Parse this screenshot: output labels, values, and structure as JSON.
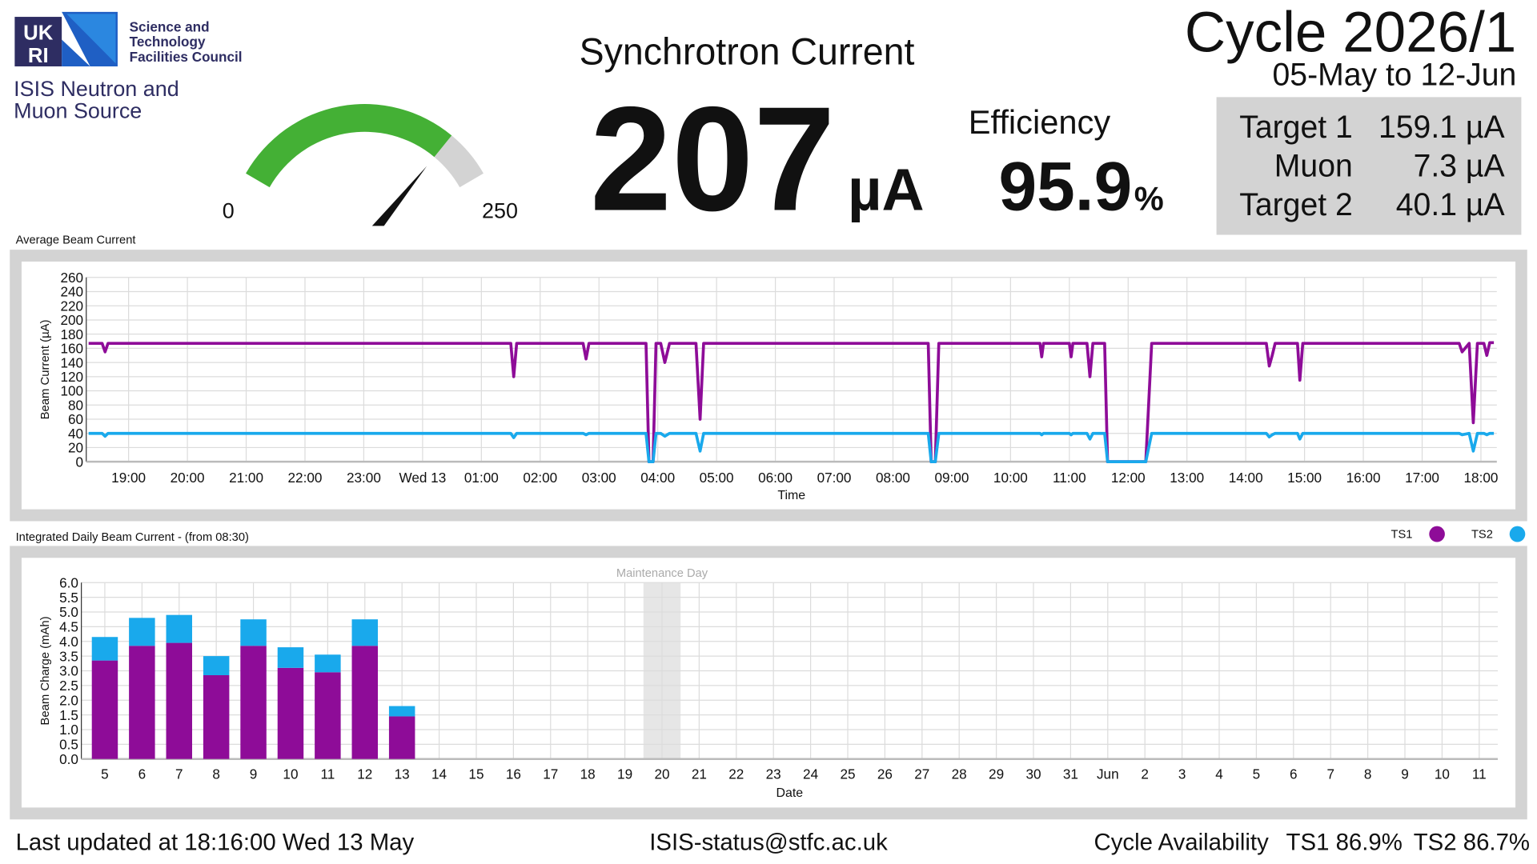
{
  "logo": {
    "letters": [
      "UK",
      "RI"
    ],
    "council": [
      "Science and",
      "Technology",
      "Facilities Council"
    ],
    "facility": [
      "ISIS Neutron and",
      "Muon Source"
    ]
  },
  "current": {
    "title": "Synchrotron Current",
    "value": 207,
    "unit": "µA"
  },
  "gauge": {
    "min": 0,
    "max": 250,
    "color": "#44b035",
    "track_color": "#d3d3d3"
  },
  "efficiency": {
    "label": "Efficiency",
    "value": 95.9,
    "unit": "%"
  },
  "cycle": {
    "title": "Cycle 2026/1",
    "dates": "05-May to 12-Jun"
  },
  "targets": [
    {
      "name": "Target 1",
      "value": "159.1 µA"
    },
    {
      "name": "Muon",
      "value": "7.3 µA"
    },
    {
      "name": "Target 2",
      "value": "40.1 µA"
    }
  ],
  "footer": {
    "updated": "Last updated at 18:16:00 Wed 13 May",
    "email": "ISIS-status@stfc.ac.uk",
    "availability": "Cycle Availability",
    "ts1": "TS1 86.9%",
    "ts2": "TS2 86.7%"
  },
  "chart_data": [
    {
      "type": "line",
      "title": "Average Beam Current",
      "x_label": "Time",
      "y_label": "Beam Current (µA)",
      "xlim": [
        18.28,
        42.27
      ],
      "xticks": [
        {
          "value": 19,
          "label": "19:00"
        },
        {
          "value": 20,
          "label": "20:00"
        },
        {
          "value": 21,
          "label": "21:00"
        },
        {
          "value": 22,
          "label": "22:00"
        },
        {
          "value": 23,
          "label": "23:00"
        },
        {
          "value": 24,
          "label": "Wed 13"
        },
        {
          "value": 25,
          "label": "01:00"
        },
        {
          "value": 26,
          "label": "02:00"
        },
        {
          "value": 27,
          "label": "03:00"
        },
        {
          "value": 28,
          "label": "04:00"
        },
        {
          "value": 29,
          "label": "05:00"
        },
        {
          "value": 30,
          "label": "06:00"
        },
        {
          "value": 31,
          "label": "07:00"
        },
        {
          "value": 32,
          "label": "08:00"
        },
        {
          "value": 33,
          "label": "09:00"
        },
        {
          "value": 34,
          "label": "10:00"
        },
        {
          "value": 35,
          "label": "11:00"
        },
        {
          "value": 36,
          "label": "12:00"
        },
        {
          "value": 37,
          "label": "13:00"
        },
        {
          "value": 38,
          "label": "14:00"
        },
        {
          "value": 39,
          "label": "15:00"
        },
        {
          "value": 40,
          "label": "16:00"
        },
        {
          "value": 41,
          "label": "17:00"
        },
        {
          "value": 42,
          "label": "18:00"
        }
      ],
      "ylim": [
        0,
        260
      ],
      "yticks": [
        0,
        20,
        40,
        60,
        80,
        100,
        120,
        140,
        160,
        180,
        200,
        220,
        240,
        260
      ],
      "grid": true,
      "x": [
        18.32,
        18.55,
        18.6,
        18.65,
        25.5,
        25.55,
        25.6,
        26.73,
        26.78,
        26.83,
        27.8,
        27.85,
        27.92,
        27.97,
        28.05,
        28.12,
        28.2,
        28.65,
        28.72,
        28.78,
        32.6,
        32.65,
        32.72,
        32.78,
        34.5,
        34.53,
        34.56,
        35.0,
        35.03,
        35.06,
        35.3,
        35.35,
        35.4,
        35.6,
        35.65,
        36.3,
        36.4,
        38.35,
        38.4,
        38.45,
        38.5,
        38.88,
        38.92,
        38.97,
        41.63,
        41.68,
        41.8,
        41.87,
        41.94,
        42.05,
        42.1,
        42.15,
        42.22
      ],
      "series": [
        {
          "name": "TS1",
          "color": "#8e0c98",
          "values": [
            167,
            167,
            155,
            167,
            167,
            120,
            167,
            167,
            145,
            167,
            167,
            0,
            0,
            167,
            167,
            140,
            167,
            167,
            60,
            167,
            167,
            0,
            0,
            167,
            167,
            148,
            167,
            167,
            148,
            167,
            167,
            120,
            167,
            167,
            0,
            0,
            167,
            167,
            135,
            150,
            167,
            167,
            115,
            167,
            167,
            155,
            167,
            55,
            167,
            167,
            150,
            168,
            168
          ]
        },
        {
          "name": "TS2",
          "color": "#19a9ec",
          "values": [
            40,
            40,
            36,
            40,
            40,
            34,
            40,
            40,
            38,
            40,
            40,
            0,
            0,
            40,
            40,
            36,
            40,
            40,
            15,
            40,
            40,
            0,
            0,
            40,
            40,
            38,
            40,
            40,
            38,
            40,
            40,
            32,
            40,
            40,
            0,
            0,
            40,
            40,
            35,
            38,
            40,
            40,
            32,
            40,
            40,
            38,
            40,
            15,
            40,
            40,
            38,
            40,
            40
          ]
        }
      ]
    },
    {
      "type": "bar",
      "stacked": true,
      "title": "Integrated Daily Beam Current - (from 08:30)",
      "x_label": "Date",
      "y_label": "Beam Charge (mAh)",
      "legend": "top-right",
      "annotation": {
        "text": "Maintenance Day",
        "category": "20",
        "color": "#e6e6e6"
      },
      "categories": [
        "5",
        "6",
        "7",
        "8",
        "9",
        "10",
        "11",
        "12",
        "13",
        "14",
        "15",
        "16",
        "17",
        "18",
        "19",
        "20",
        "21",
        "22",
        "23",
        "24",
        "25",
        "26",
        "27",
        "28",
        "29",
        "30",
        "31",
        "Jun",
        "2",
        "3",
        "4",
        "5",
        "6",
        "7",
        "8",
        "9",
        "10",
        "11"
      ],
      "ylim": [
        0,
        6
      ],
      "yticks": [
        {
          "value": 0,
          "label": "0.0"
        },
        {
          "value": 0.5,
          "label": "0.5"
        },
        {
          "value": 1,
          "label": "1.0"
        },
        {
          "value": 1.5,
          "label": "1.5"
        },
        {
          "value": 2,
          "label": "2.0"
        },
        {
          "value": 2.5,
          "label": "2.5"
        },
        {
          "value": 3,
          "label": "3.0"
        },
        {
          "value": 3.5,
          "label": "3.5"
        },
        {
          "value": 4,
          "label": "4.0"
        },
        {
          "value": 4.5,
          "label": "4.5"
        },
        {
          "value": 5,
          "label": "5.0"
        },
        {
          "value": 5.5,
          "label": "5.5"
        },
        {
          "value": 6,
          "label": "6.0"
        }
      ],
      "grid": true,
      "series": [
        {
          "name": "TS1",
          "color": "#8e0c98",
          "values": [
            3.35,
            3.85,
            3.95,
            2.85,
            3.85,
            3.1,
            2.95,
            3.85,
            1.45,
            null,
            null,
            null,
            null,
            null,
            null,
            null,
            null,
            null,
            null,
            null,
            null,
            null,
            null,
            null,
            null,
            null,
            null,
            null,
            null,
            null,
            null,
            null,
            null,
            null,
            null,
            null,
            null,
            null
          ]
        },
        {
          "name": "TS2",
          "color": "#19a9ec",
          "values": [
            0.8,
            0.95,
            0.95,
            0.65,
            0.9,
            0.7,
            0.6,
            0.9,
            0.35,
            null,
            null,
            null,
            null,
            null,
            null,
            null,
            null,
            null,
            null,
            null,
            null,
            null,
            null,
            null,
            null,
            null,
            null,
            null,
            null,
            null,
            null,
            null,
            null,
            null,
            null,
            null,
            null,
            null
          ]
        }
      ]
    }
  ]
}
